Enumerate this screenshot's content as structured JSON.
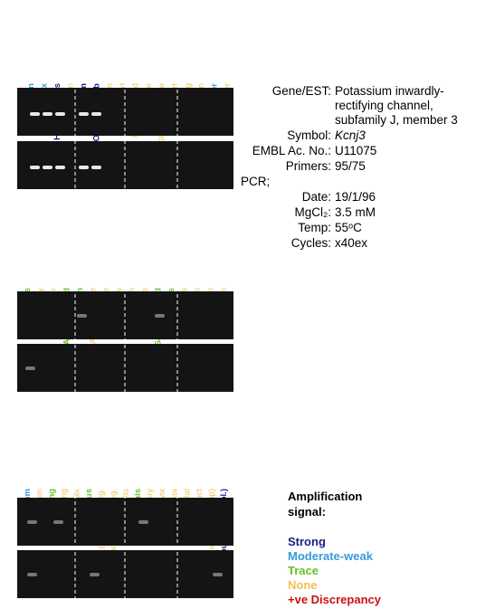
{
  "panels": [
    {
      "labels": [
        {
          "text": "Whole brain",
          "color": "#3a9ad9"
        },
        {
          "text": "Cortex",
          "color": "#3a9ad9"
        },
        {
          "text": "Hippocampus",
          "color": "#1c1c84"
        },
        {
          "text": "Mid brain",
          "color": "#f0c050"
        },
        {
          "text": "Striatum",
          "color": "#1c1c84"
        },
        {
          "text": "Olfactory bulb",
          "color": "#1c1c84"
        },
        {
          "text": "Cerebellum",
          "color": "#f0c050"
        },
        {
          "text": "Spinal cord",
          "color": "#f0c050"
        },
        {
          "text": "Pituitary gland",
          "color": "#f0c050"
        },
        {
          "text": "Eye",
          "color": "#f0c050"
        },
        {
          "text": "Skeletal muscle",
          "color": "#f0c050"
        },
        {
          "text": "Heart",
          "color": "#f0c050"
        },
        {
          "text": "Lung",
          "color": "#f0c050"
        },
        {
          "text": "Spleen",
          "color": "#f0c050"
        },
        {
          "text": "Liver",
          "color": "#3a9ad9"
        },
        {
          "text": "Gall bladder",
          "color": "#f0c050"
        }
      ]
    },
    {
      "labels": [
        {
          "text": "Pancreas",
          "color": "#66c22a"
        },
        {
          "text": "Kidney",
          "color": "#f0c050"
        },
        {
          "text": "Bladder",
          "color": "#f0c050"
        },
        {
          "text": "Adrenal gland",
          "color": "#66c22a"
        },
        {
          "text": "Skin",
          "color": "#66c22a"
        },
        {
          "text": "Adipose tissue",
          "color": "#f0c050"
        },
        {
          "text": "Long bone",
          "color": "#f0c050"
        },
        {
          "text": "Paw",
          "color": "#f0c050"
        },
        {
          "text": "Teeth",
          "color": "#f0c050"
        },
        {
          "text": "Tongue",
          "color": "#f0c050"
        },
        {
          "text": "Salivary gland",
          "color": "#66c22a"
        },
        {
          "text": "Oesophagus",
          "color": "#66c22a"
        },
        {
          "text": "Fundus",
          "color": "#f0c050"
        },
        {
          "text": "Antrum",
          "color": "#f0c050"
        },
        {
          "text": "Duodenum",
          "color": "#f0c050"
        },
        {
          "text": "Jejunum",
          "color": "#f0c050"
        }
      ]
    },
    {
      "labels": [
        {
          "text": "Ileum",
          "color": "#3a9ad9"
        },
        {
          "text": "Caecum",
          "color": "#f0c050"
        },
        {
          "text": "Ascending",
          "color": "#66c22a"
        },
        {
          "text": "Descending",
          "color": "#f0c050"
        },
        {
          "text": "Appendix",
          "color": "#f0c050"
        },
        {
          "text": "Thymus",
          "color": "#66c22a"
        },
        {
          "text": "Mamm.gland non-preg.",
          "color": "#f0c050"
        },
        {
          "text": "Mamm.gland preg.",
          "color": "#f0c050"
        },
        {
          "text": "Testis",
          "color": "#f0c050"
        },
        {
          "text": "Epididymis",
          "color": "#66c22a"
        },
        {
          "text": "Ovary",
          "color": "#f0c050"
        },
        {
          "text": "Cervix",
          "color": "#f0c050"
        },
        {
          "text": "Placenta",
          "color": "#f0c050"
        },
        {
          "text": "Mid-term foetal",
          "color": "#f0c050"
        },
        {
          "text": "No RT product",
          "color": "#f0c050"
        },
        {
          "text": "Human DNA (Top)",
          "color": "#f0c050"
        },
        {
          "text": "Mouse DNA (Bol.)",
          "color": "#1c1c84"
        }
      ]
    }
  ],
  "info": {
    "rows": [
      {
        "key": "Gene/EST:",
        "value": [
          "Potassium inwardly-",
          "rectifying channel,",
          "subfamily J, member 3"
        ]
      },
      {
        "key": "Symbol:",
        "value": [
          "Kcnj3"
        ]
      },
      {
        "key": "EMBL Ac. No.:",
        "value": [
          "U11075"
        ]
      },
      {
        "key": "Primers:",
        "value": [
          "95/75"
        ]
      }
    ],
    "pcr": "PCR;",
    "pcr_rows": [
      {
        "key": "Date:",
        "value": [
          "19/1/96"
        ]
      },
      {
        "key": "MgCl₂:",
        "value": [
          "3.5 mM"
        ]
      },
      {
        "key": "Temp:",
        "value": [
          "55ᵒC"
        ]
      },
      {
        "key": "Cycles:",
        "value": [
          "x40ex"
        ]
      }
    ]
  },
  "legend": {
    "title": [
      "Amplification",
      "signal:"
    ],
    "items": [
      {
        "text": "Strong",
        "color": "#1c1c84"
      },
      {
        "text": "Moderate-weak",
        "color": "#3a9ad9"
      },
      {
        "text": "Trace",
        "color": "#66c22a"
      },
      {
        "text": "None",
        "color": "#f0c050"
      },
      {
        "text": "+ve Discrepancy",
        "color": "#cc1111"
      }
    ]
  }
}
